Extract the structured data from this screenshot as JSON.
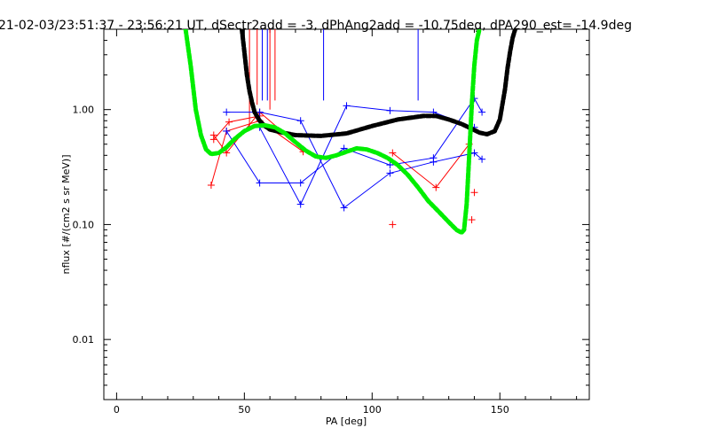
{
  "chart_data": {
    "type": "line",
    "title": "21-02-03/23:51:37 - 23:56:21 UT, dSectr2add = -3, dPhAng2add = -10.75deg, dPA290_est= -14.9deg",
    "xlabel": "PA [deg]",
    "ylabel": "nflux [#/(cm2 s sr MeV)]",
    "xlim": [
      -5,
      185
    ],
    "ylim": [
      0.003,
      5.0
    ],
    "yscale": "log",
    "grid": false,
    "x_ticks": [
      0,
      50,
      100,
      150
    ],
    "x_tick_labels": [
      "0",
      "50",
      "100",
      "150"
    ],
    "y_ticks": [
      0.01,
      0.1,
      1.0
    ],
    "y_tick_labels": [
      "0.01",
      "0.10",
      "1.00"
    ],
    "colors": {
      "red_series": "#ff0000",
      "blue_series": "#0000ff",
      "black_fit": "#000000",
      "green_fit": "#00ee00",
      "axes": "#000000",
      "background": "#ffffff"
    },
    "series": [
      {
        "color": "red",
        "style": "line+plus",
        "x": [
          37,
          43,
          56,
          73
        ],
        "y": [
          0.22,
          0.65,
          0.8,
          0.43
        ]
      },
      {
        "color": "red",
        "style": "line+plus",
        "x": [
          38,
          43,
          56,
          73
        ],
        "y": [
          0.6,
          0.42,
          0.95,
          0.45
        ]
      },
      {
        "color": "red",
        "style": "line+plus",
        "x": [
          38,
          44,
          56
        ],
        "y": [
          0.55,
          0.78,
          0.88
        ]
      },
      {
        "color": "red",
        "style": "line+plus",
        "x": [
          108,
          125,
          138
        ],
        "y": [
          0.42,
          0.21,
          0.5
        ]
      },
      {
        "color": "red",
        "style": "plus",
        "x": [
          108,
          139,
          140
        ],
        "y": [
          0.1,
          0.11,
          0.19
        ]
      },
      {
        "color": "red",
        "style": "vline",
        "x": [
          52,
          55,
          60,
          62
        ],
        "y0": [
          5.0,
          5.0,
          5.0,
          5.0
        ],
        "y1": [
          0.7,
          1.1,
          1.0,
          1.2
        ]
      },
      {
        "color": "blue",
        "style": "line+plus",
        "x": [
          43,
          56,
          72,
          89,
          107,
          124,
          140,
          143
        ],
        "y": [
          0.95,
          0.95,
          0.8,
          0.14,
          0.28,
          0.35,
          0.42,
          0.37
        ]
      },
      {
        "color": "blue",
        "style": "line+plus",
        "x": [
          43,
          56,
          72,
          89,
          107,
          124,
          140,
          143
        ],
        "y": [
          0.65,
          0.23,
          0.23,
          0.46,
          0.33,
          0.38,
          1.25,
          0.95
        ]
      },
      {
        "color": "blue",
        "style": "line+plus",
        "x": [
          56,
          72,
          90,
          107,
          124,
          140
        ],
        "y": [
          0.7,
          0.15,
          1.08,
          0.98,
          0.95,
          0.7
        ]
      },
      {
        "color": "blue",
        "style": "vline",
        "x": [
          57,
          59,
          81,
          118
        ],
        "y0": [
          5.0,
          5.0,
          5.0,
          5.0
        ],
        "y1": [
          1.2,
          1.2,
          1.2,
          1.2
        ]
      },
      {
        "color": "black",
        "style": "dashed-thick",
        "x": [
          49,
          50,
          51,
          52,
          53,
          54,
          56,
          58,
          60,
          65,
          70,
          80,
          90,
          100,
          110,
          120,
          125,
          130,
          135,
          139,
          142,
          145,
          148,
          150,
          152,
          153,
          154,
          155,
          156
        ],
        "y": [
          5.0,
          3.2,
          2.0,
          1.45,
          1.15,
          0.95,
          0.8,
          0.72,
          0.67,
          0.63,
          0.6,
          0.59,
          0.62,
          0.72,
          0.82,
          0.88,
          0.88,
          0.82,
          0.75,
          0.68,
          0.63,
          0.61,
          0.65,
          0.82,
          1.5,
          2.3,
          3.2,
          4.2,
          5.0
        ]
      },
      {
        "color": "green",
        "style": "dashed-thick",
        "x": [
          27,
          29,
          31,
          33,
          35,
          37,
          40,
          43,
          46,
          50,
          54,
          58,
          62,
          66,
          70,
          74,
          78,
          82,
          86,
          90,
          94,
          98,
          102,
          106,
          110,
          114,
          118,
          122,
          126,
          130,
          133,
          135,
          136,
          137,
          138,
          139,
          140,
          141,
          142
        ],
        "y": [
          5.0,
          2.4,
          1.0,
          0.6,
          0.45,
          0.41,
          0.42,
          0.47,
          0.55,
          0.65,
          0.72,
          0.73,
          0.7,
          0.62,
          0.52,
          0.44,
          0.39,
          0.38,
          0.4,
          0.43,
          0.46,
          0.45,
          0.42,
          0.38,
          0.33,
          0.27,
          0.21,
          0.16,
          0.13,
          0.105,
          0.09,
          0.085,
          0.09,
          0.15,
          0.4,
          1.1,
          2.4,
          4.0,
          5.0
        ]
      }
    ]
  }
}
